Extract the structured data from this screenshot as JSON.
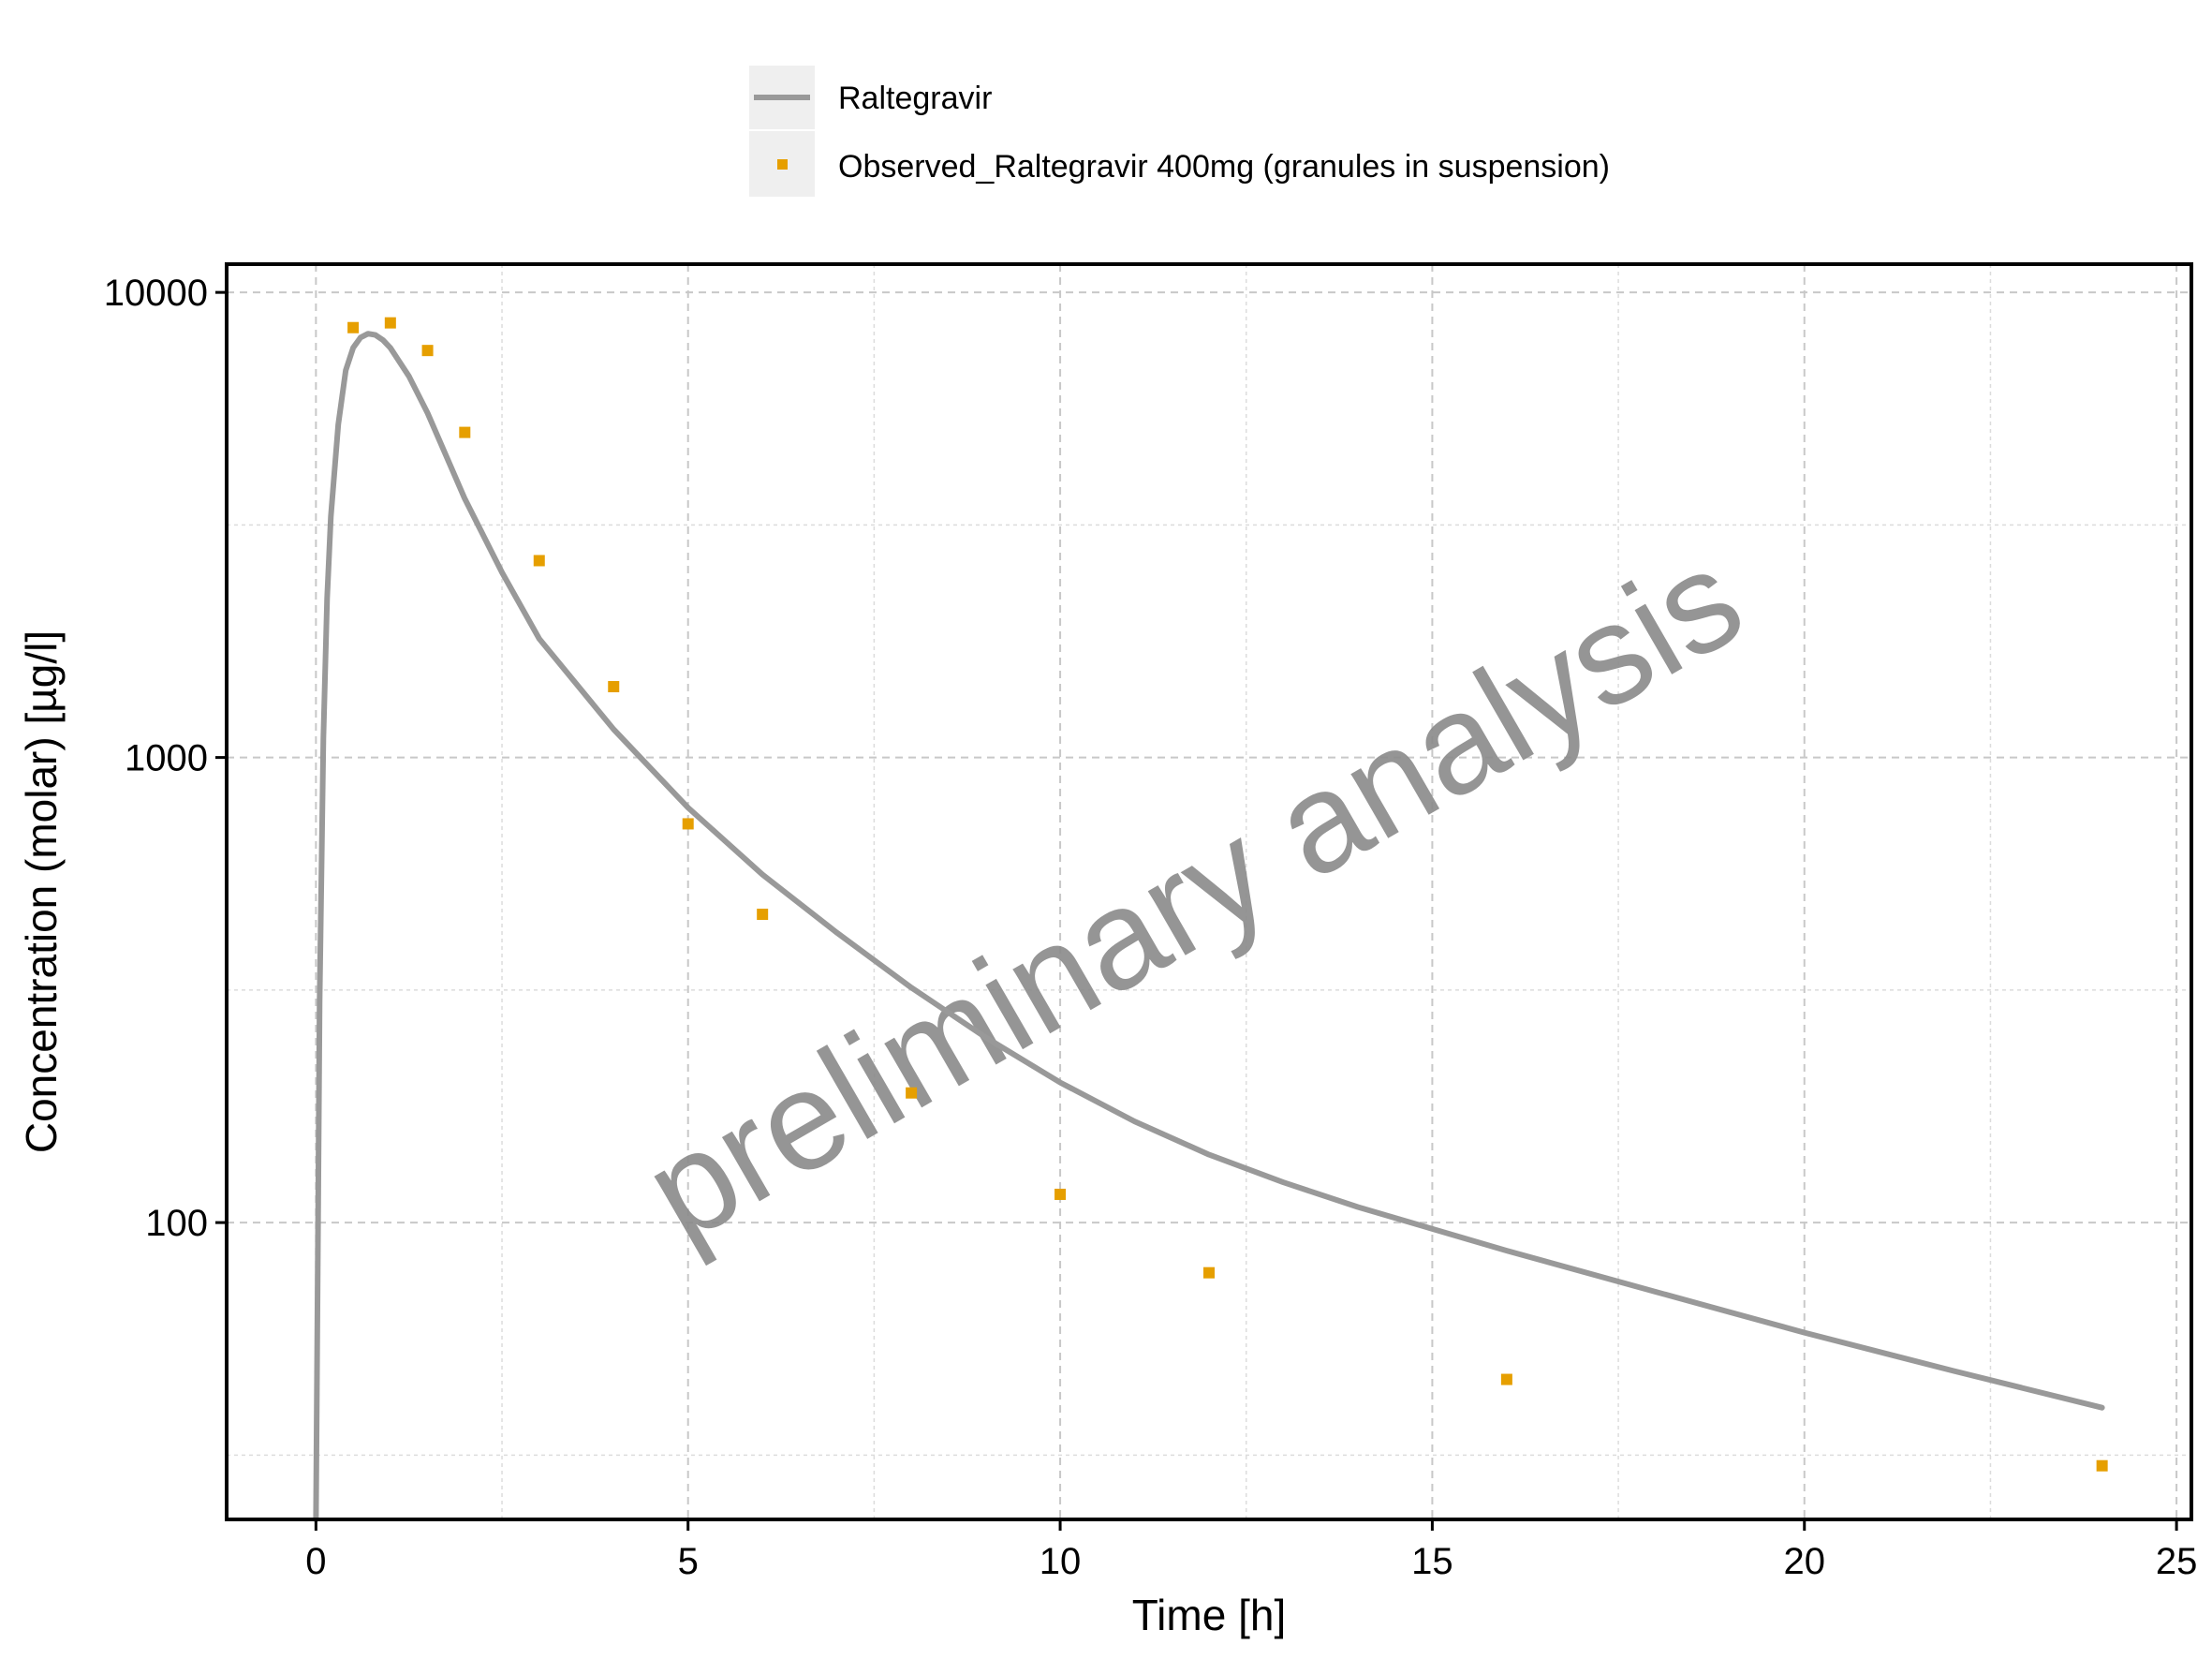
{
  "chart_data": {
    "type": "line",
    "title": "",
    "xlabel": "Time [h]",
    "ylabel": "Concentration (molar) [µg/l]",
    "x_scale": "linear",
    "y_scale": "log",
    "xlim": [
      -1.2,
      25.2
    ],
    "ylim": [
      23,
      11500
    ],
    "x_ticks": [
      0,
      5,
      10,
      15,
      20,
      25
    ],
    "x_tick_labels": [
      "0",
      "5",
      "10",
      "15",
      "20",
      "25"
    ],
    "y_ticks": [
      100,
      1000,
      10000
    ],
    "y_tick_labels": [
      "100",
      "1000",
      "10000"
    ],
    "grid": true,
    "legend_position": "top",
    "watermark": "preliminary analysis",
    "colors": {
      "simulated": "#999999",
      "observed": "#E69F00",
      "grid": "#c8c8c8"
    },
    "series": [
      {
        "name": "Raltegravir",
        "kind": "line",
        "x": [
          0,
          0.05,
          0.1,
          0.15,
          0.2,
          0.3,
          0.4,
          0.5,
          0.6,
          0.7,
          0.8,
          0.9,
          1.0,
          1.25,
          1.5,
          2.0,
          2.5,
          3.0,
          4.0,
          5.0,
          6.0,
          7.0,
          8.0,
          9.0,
          10.0,
          11.0,
          12.0,
          13.0,
          14.0,
          16.0,
          18.0,
          20.0,
          22.0,
          24.0
        ],
        "y": [
          23,
          300,
          1100,
          2200,
          3300,
          5200,
          6800,
          7600,
          8000,
          8150,
          8100,
          7900,
          7600,
          6600,
          5500,
          3600,
          2500,
          1800,
          1150,
          780,
          560,
          420,
          320,
          250,
          200,
          165,
          140,
          122,
          108,
          87,
          71,
          58,
          48,
          40
        ]
      },
      {
        "name": "Observed_Raltegravir 400mg (granules in suspension)",
        "kind": "points",
        "x": [
          0.5,
          1.0,
          1.5,
          2.0,
          3.0,
          4.0,
          5.0,
          6.0,
          8.0,
          10.0,
          12.0,
          16.0,
          24.0
        ],
        "y": [
          8400,
          8600,
          7500,
          5000,
          2650,
          1420,
          720,
          460,
          190,
          115,
          78,
          46,
          30
        ]
      }
    ]
  }
}
